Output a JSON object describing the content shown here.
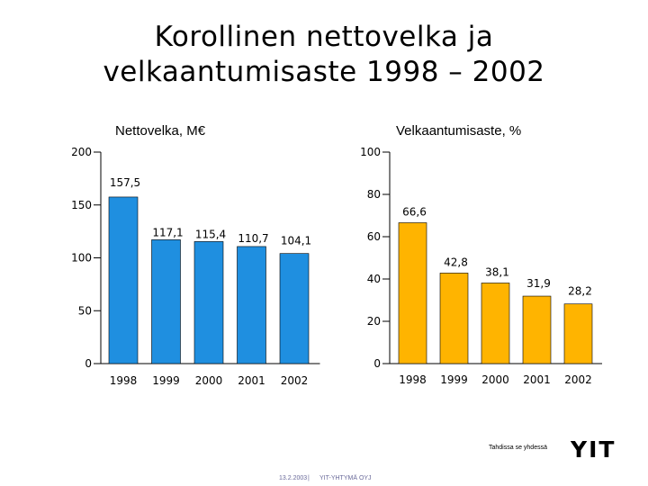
{
  "title_line1": "Korollinen nettovelka ja",
  "title_line2": "velkaantumisaste 1998 – 2002",
  "chart_data": [
    {
      "type": "bar",
      "title": "Nettovelka, M€",
      "categories": [
        "1998",
        "1999",
        "2000",
        "2001",
        "2002"
      ],
      "values": [
        157.5,
        117.1,
        115.4,
        110.7,
        104.1
      ],
      "value_labels": [
        "157,5",
        "117,1",
        "115,4",
        "110,7",
        "104,1"
      ],
      "yticks": [
        "0",
        "50",
        "100",
        "150",
        "200"
      ],
      "ylim": [
        0,
        200
      ],
      "color": "#1f8fe0",
      "grid": false,
      "legend": "none"
    },
    {
      "type": "bar",
      "title": "Velkaantumisaste, %",
      "categories": [
        "1998",
        "1999",
        "2000",
        "2001",
        "2002"
      ],
      "values": [
        66.6,
        42.8,
        38.1,
        31.9,
        28.2
      ],
      "value_labels": [
        "66,6",
        "42,8",
        "38,1",
        "31,9",
        "28,2"
      ],
      "yticks": [
        "0",
        "20",
        "40",
        "60",
        "80",
        "100"
      ],
      "ylim": [
        0,
        100
      ],
      "color": "#ffb400",
      "grid": false,
      "legend": "none"
    }
  ],
  "footer": {
    "note": "Tahdissa se yhdessä",
    "date": "13.2.2003",
    "separator": "|",
    "company": "YIT-YHTYMÄ OYJ",
    "logo_text": "YIT",
    "logo_color": "#1a2a8c"
  }
}
